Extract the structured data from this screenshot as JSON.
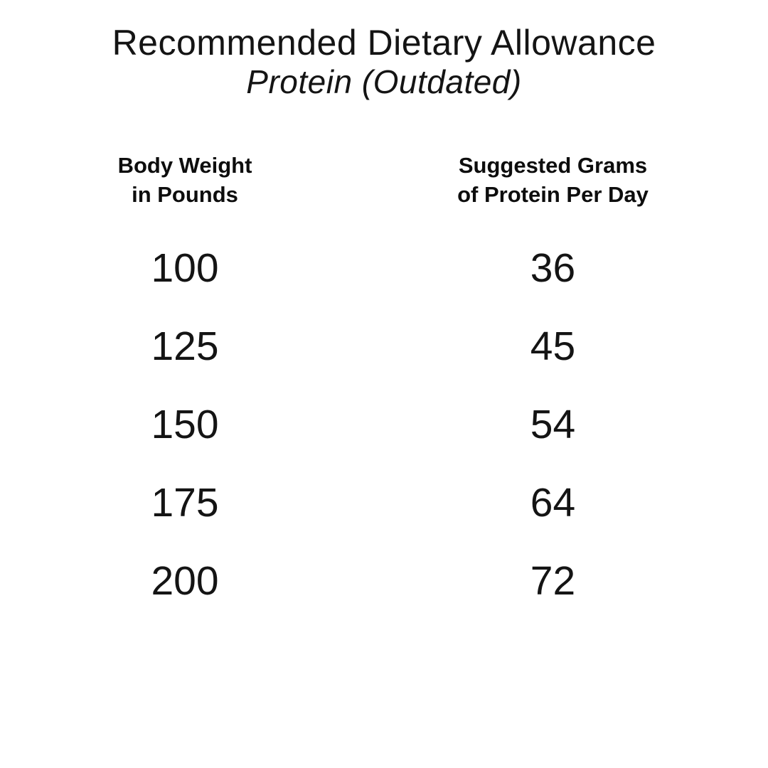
{
  "title": {
    "line1": "Recommended Dietary Allowance",
    "line2": "Protein (Outdated)"
  },
  "table": {
    "columns": [
      {
        "line1": "Body Weight",
        "line2": "in Pounds"
      },
      {
        "line1": "Suggested Grams",
        "line2": "of Protein Per Day"
      }
    ],
    "rows": [
      {
        "weight": "100",
        "protein": "36"
      },
      {
        "weight": "125",
        "protein": "45"
      },
      {
        "weight": "150",
        "protein": "54"
      },
      {
        "weight": "175",
        "protein": "64"
      },
      {
        "weight": "200",
        "protein": "72"
      }
    ]
  },
  "colors": {
    "background": "#ffffff",
    "text": "#141414"
  },
  "chart_data": {
    "type": "table",
    "title": "Recommended Dietary Allowance",
    "subtitle": "Protein (Outdated)",
    "columns": [
      "Body Weight in Pounds",
      "Suggested Grams of Protein Per Day"
    ],
    "rows": [
      [
        100,
        36
      ],
      [
        125,
        45
      ],
      [
        150,
        54
      ],
      [
        175,
        64
      ],
      [
        200,
        72
      ]
    ]
  }
}
